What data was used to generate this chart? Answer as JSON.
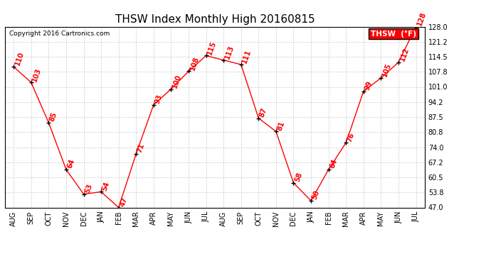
{
  "title": "THSW Index Monthly High 20160815",
  "copyright": "Copyright 2016 Cartronics.com",
  "legend_label": "THSW  (°F)",
  "months": [
    "AUG",
    "SEP",
    "OCT",
    "NOV",
    "DEC",
    "JAN",
    "FEB",
    "MAR",
    "APR",
    "MAY",
    "JUN",
    "JUL",
    "AUG",
    "SEP",
    "OCT",
    "NOV",
    "DEC",
    "JAN",
    "FEB",
    "MAR",
    "APR",
    "MAY",
    "JUN",
    "JUL"
  ],
  "values": [
    110,
    103,
    85,
    64,
    53,
    54,
    47,
    71,
    93,
    100,
    108,
    115,
    113,
    111,
    87,
    81,
    58,
    50,
    64,
    76,
    99,
    105,
    112,
    128
  ],
  "ylim": [
    47.0,
    128.0
  ],
  "yticks": [
    47.0,
    53.8,
    60.5,
    67.2,
    74.0,
    80.8,
    87.5,
    94.2,
    101.0,
    107.8,
    114.5,
    121.2,
    128.0
  ],
  "line_color": "red",
  "marker_color": "black",
  "label_color": "red",
  "bg_color": "#ffffff",
  "grid_color": "#cccccc",
  "title_fontsize": 11,
  "label_fontsize": 7,
  "axis_tick_fontsize": 7,
  "legend_bg": "red",
  "legend_text_color": "white",
  "copyright_fontsize": 6.5
}
